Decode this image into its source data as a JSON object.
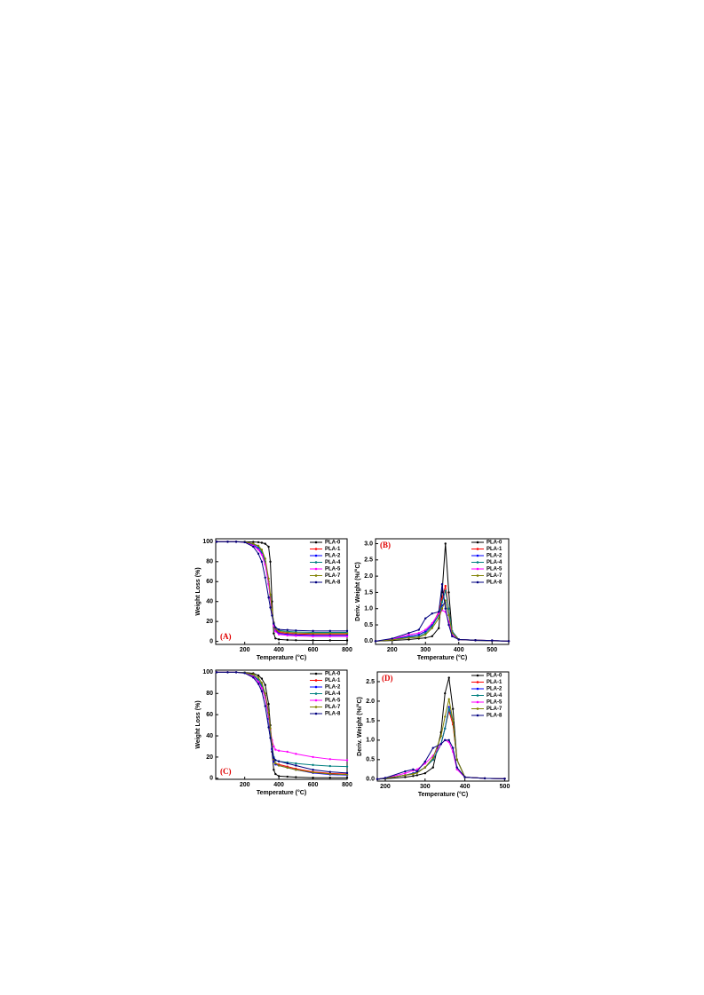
{
  "chart_data": [
    {
      "type": "line",
      "label": "(A)",
      "label_corner": "lower left",
      "x_label": "Temperature (°C)",
      "y_label": "Weight Loss (%)",
      "xlim": [
        30,
        800
      ],
      "ylim": [
        -3,
        103
      ],
      "xticks": [
        200,
        400,
        600,
        800
      ],
      "yticks": [
        0,
        20,
        40,
        60,
        80,
        100
      ],
      "legend": "upper right",
      "x": [
        35,
        100,
        150,
        200,
        250,
        280,
        300,
        320,
        340,
        350,
        360,
        370,
        380,
        400,
        450,
        500,
        600,
        700,
        800
      ],
      "series": [
        {
          "name": "PLA-0",
          "color": "#000000",
          "values": [
            100,
            100,
            100,
            100,
            99.8,
            99.5,
            99,
            98,
            95,
            80,
            40,
            8,
            3,
            2,
            1.5,
            1.2,
            1,
            1,
            1
          ]
        },
        {
          "name": "PLA-1",
          "color": "#ff0000",
          "values": [
            100,
            100,
            100,
            99.8,
            98,
            95,
            90,
            80,
            60,
            45,
            30,
            18,
            12,
            9,
            8,
            7.5,
            7,
            7,
            7
          ]
        },
        {
          "name": "PLA-2",
          "color": "#0000ff",
          "values": [
            100,
            100,
            100,
            99.7,
            97,
            93,
            88,
            78,
            58,
            44,
            29,
            17,
            11,
            8,
            7,
            6.5,
            6,
            6,
            6
          ]
        },
        {
          "name": "PLA-4",
          "color": "#008080",
          "values": [
            100,
            100,
            100,
            99.8,
            98,
            95,
            90,
            80,
            60,
            45,
            30,
            19,
            14,
            11,
            10,
            9.5,
            9,
            9,
            9
          ]
        },
        {
          "name": "PLA-5",
          "color": "#ff00ff",
          "values": [
            100,
            100,
            100,
            99.6,
            96,
            92,
            87,
            77,
            57,
            43,
            28,
            16,
            10,
            7,
            6,
            5.5,
            5,
            5,
            5
          ]
        },
        {
          "name": "PLA-7",
          "color": "#808000",
          "values": [
            100,
            100,
            100,
            99.8,
            98,
            96,
            92,
            83,
            63,
            47,
            32,
            19,
            13,
            10,
            9,
            8.5,
            8,
            8,
            8
          ]
        },
        {
          "name": "PLA-8",
          "color": "#000080",
          "values": [
            100,
            100,
            100,
            99.5,
            95,
            88,
            80,
            64,
            44,
            34,
            26,
            18,
            14,
            12,
            11.5,
            11,
            10.5,
            10.5,
            10.5
          ]
        }
      ]
    },
    {
      "type": "line",
      "label": "(B)",
      "label_corner": "upper left",
      "x_label": "Temperature (°C)",
      "y_label": "Deriv. Weight (%/°C)",
      "xlim": [
        150,
        550
      ],
      "ylim": [
        -0.1,
        3.15
      ],
      "xticks": [
        200,
        300,
        400,
        500
      ],
      "yticks": [
        {
          "value": 0,
          "label": "0.0"
        },
        0.5,
        {
          "value": 1,
          "label": "1.0"
        },
        1.5,
        {
          "value": 2,
          "label": "2.0"
        },
        2.5,
        {
          "value": 3,
          "label": "3.0"
        }
      ],
      "legend": "upper right",
      "x": [
        150,
        200,
        250,
        280,
        300,
        320,
        340,
        350,
        360,
        370,
        380,
        400,
        450,
        500,
        550
      ],
      "series": [
        {
          "name": "PLA-0",
          "color": "#000000",
          "values": [
            0,
            0.02,
            0.05,
            0.08,
            0.1,
            0.15,
            0.4,
            1.5,
            3.0,
            1.5,
            0.3,
            0.05,
            0.02,
            0.01,
            0
          ]
        },
        {
          "name": "PLA-1",
          "color": "#ff0000",
          "values": [
            0,
            0.05,
            0.15,
            0.2,
            0.3,
            0.5,
            0.9,
            1.3,
            1.7,
            1.0,
            0.3,
            0.05,
            0.03,
            0.02,
            0
          ]
        },
        {
          "name": "PLA-2",
          "color": "#0000ff",
          "values": [
            0,
            0.05,
            0.15,
            0.2,
            0.3,
            0.5,
            0.8,
            1.1,
            1.2,
            0.8,
            0.3,
            0.05,
            0.03,
            0.02,
            0
          ]
        },
        {
          "name": "PLA-4",
          "color": "#008080",
          "values": [
            0,
            0.05,
            0.12,
            0.15,
            0.25,
            0.45,
            0.8,
            1.2,
            1.55,
            1.0,
            0.3,
            0.05,
            0.03,
            0.02,
            0
          ]
        },
        {
          "name": "PLA-5",
          "color": "#ff00ff",
          "values": [
            0,
            0.06,
            0.2,
            0.25,
            0.35,
            0.55,
            0.85,
            0.95,
            0.9,
            0.6,
            0.2,
            0.05,
            0.03,
            0.02,
            0
          ]
        },
        {
          "name": "PLA-7",
          "color": "#808000",
          "values": [
            0,
            0.04,
            0.1,
            0.12,
            0.2,
            0.4,
            0.7,
            1.0,
            1.25,
            0.8,
            0.25,
            0.05,
            0.03,
            0.02,
            0
          ]
        },
        {
          "name": "PLA-8",
          "color": "#000080",
          "values": [
            0,
            0.08,
            0.25,
            0.35,
            0.7,
            0.85,
            0.9,
            1.75,
            1.0,
            0.5,
            0.15,
            0.05,
            0.03,
            0.02,
            0
          ]
        }
      ]
    },
    {
      "type": "line",
      "label": "(C)",
      "label_corner": "lower left",
      "x_label": "Temperature (°C)",
      "y_label": "Weight Loss (%)",
      "xlim": [
        30,
        800
      ],
      "ylim": [
        -1,
        102
      ],
      "xticks": [
        200,
        400,
        600,
        800
      ],
      "yticks": [
        0,
        20,
        40,
        60,
        80,
        100
      ],
      "legend": "upper right",
      "x": [
        35,
        100,
        150,
        200,
        250,
        280,
        300,
        320,
        340,
        350,
        360,
        370,
        380,
        400,
        450,
        500,
        600,
        700,
        800
      ],
      "series": [
        {
          "name": "PLA-0",
          "color": "#000000",
          "values": [
            100,
            100,
            100,
            99.8,
            99,
            97,
            94,
            88,
            70,
            50,
            25,
            8,
            4,
            2,
            1.5,
            1,
            0.5,
            0.5,
            0.5
          ]
        },
        {
          "name": "PLA-1",
          "color": "#ff0000",
          "values": [
            100,
            100,
            100,
            99.5,
            97,
            93,
            88,
            78,
            58,
            43,
            28,
            17,
            14,
            13,
            11,
            9,
            6,
            4.5,
            4
          ]
        },
        {
          "name": "PLA-2",
          "color": "#0000ff",
          "values": [
            100,
            100,
            100,
            99.5,
            97,
            92,
            86,
            76,
            56,
            42,
            27,
            16,
            13,
            12,
            10,
            8,
            5,
            3.5,
            3
          ]
        },
        {
          "name": "PLA-4",
          "color": "#008080",
          "values": [
            100,
            100,
            100,
            99.6,
            97,
            93,
            88,
            78,
            58,
            44,
            30,
            20,
            17,
            16,
            15,
            14,
            12.5,
            11.5,
            11
          ]
        },
        {
          "name": "PLA-5",
          "color": "#ff00ff",
          "values": [
            100,
            100,
            100,
            99.3,
            96,
            91,
            85,
            76,
            58,
            46,
            36,
            30,
            27,
            26,
            25,
            23,
            20,
            18,
            17
          ]
        },
        {
          "name": "PLA-7",
          "color": "#808000",
          "values": [
            100,
            100,
            100,
            99.6,
            98,
            95,
            90,
            80,
            62,
            47,
            32,
            18,
            14,
            12,
            10,
            8,
            5.5,
            4,
            3.5
          ]
        },
        {
          "name": "PLA-8",
          "color": "#000080",
          "values": [
            100,
            100,
            100,
            99.2,
            95,
            89,
            82,
            68,
            48,
            38,
            28,
            19,
            17,
            16,
            14,
            12,
            8,
            6,
            5
          ]
        }
      ]
    },
    {
      "type": "line",
      "label": "(D)",
      "label_corner": "upper left",
      "x_label": "Temperature (°C)",
      "y_label": "Deriv. Weight (%/°C)",
      "xlim": [
        180,
        510
      ],
      "ylim": [
        -0.05,
        2.75
      ],
      "xticks": [
        200,
        300,
        400,
        500
      ],
      "yticks": [
        {
          "value": 0,
          "label": "0.0"
        },
        0.5,
        {
          "value": 1,
          "label": "1.0"
        },
        1.5,
        {
          "value": 2,
          "label": "2.0"
        },
        2.5
      ],
      "legend": "upper right",
      "x": [
        180,
        200,
        250,
        270,
        280,
        300,
        320,
        340,
        350,
        360,
        370,
        380,
        400,
        450,
        500
      ],
      "series": [
        {
          "name": "PLA-0",
          "color": "#000000",
          "values": [
            0,
            0.01,
            0.05,
            0.08,
            0.1,
            0.15,
            0.3,
            1.2,
            2.2,
            2.6,
            1.8,
            0.5,
            0.05,
            0.02,
            0.01
          ]
        },
        {
          "name": "PLA-1",
          "color": "#ff0000",
          "values": [
            0,
            0.02,
            0.1,
            0.15,
            0.18,
            0.3,
            0.5,
            0.9,
            1.3,
            1.75,
            1.4,
            0.5,
            0.05,
            0.02,
            0.01
          ]
        },
        {
          "name": "PLA-2",
          "color": "#0000ff",
          "values": [
            0,
            0.02,
            0.1,
            0.15,
            0.18,
            0.3,
            0.5,
            0.9,
            1.3,
            1.85,
            1.5,
            0.5,
            0.05,
            0.02,
            0.01
          ]
        },
        {
          "name": "PLA-4",
          "color": "#008080",
          "values": [
            0,
            0.02,
            0.1,
            0.14,
            0.17,
            0.3,
            0.5,
            0.9,
            1.3,
            1.8,
            1.5,
            0.5,
            0.05,
            0.02,
            0.01
          ]
        },
        {
          "name": "PLA-5",
          "color": "#ff00ff",
          "values": [
            0,
            0.03,
            0.15,
            0.22,
            0.25,
            0.4,
            0.6,
            0.9,
            1.0,
            0.95,
            0.7,
            0.25,
            0.05,
            0.02,
            0.01
          ]
        },
        {
          "name": "PLA-7",
          "color": "#808000",
          "values": [
            0,
            0.02,
            0.1,
            0.13,
            0.16,
            0.3,
            0.55,
            1.1,
            1.6,
            2.05,
            1.5,
            0.5,
            0.05,
            0.02,
            0.01
          ]
        },
        {
          "name": "PLA-8",
          "color": "#000080",
          "values": [
            0,
            0.03,
            0.2,
            0.25,
            0.2,
            0.45,
            0.8,
            0.9,
            1.0,
            1.0,
            0.8,
            0.3,
            0.05,
            0.02,
            0.01
          ]
        }
      ]
    }
  ]
}
